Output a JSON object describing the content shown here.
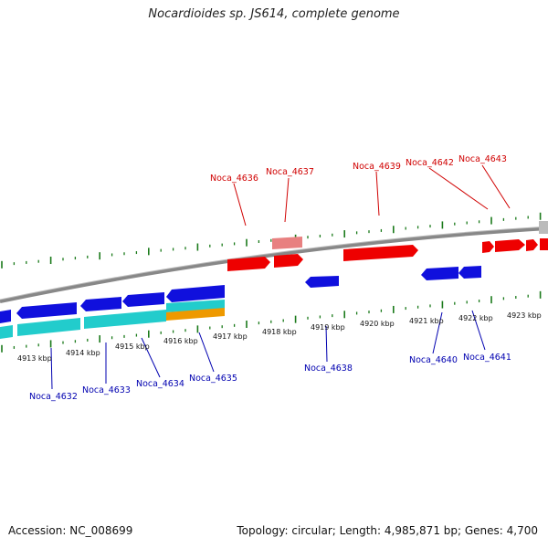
{
  "title": "Nocardioides sp. JS614, complete genome",
  "footer": {
    "accession": "Accession: NC_008699",
    "summary": "Topology: circular; Length: 4,985,871 bp; Genes: 4,700"
  },
  "colors": {
    "forward_gene": "#ee0000",
    "forward_gene_light": "#e88080",
    "reverse_gene": "#1010dd",
    "cds_cyan": "#22cccc",
    "cds_orange": "#ee9900",
    "backbone": "#888888",
    "tick": "#1a7a1a",
    "label_top": "#d00000",
    "label_bottom": "#0000b0",
    "unassigned": "#bbbbbb"
  },
  "scale_labels": [
    "4913 kbp",
    "4914 kbp",
    "4915 kbp",
    "4916 kbp",
    "4917 kbp",
    "4918 kbp",
    "4919 kbp",
    "4920 kbp",
    "4921 kbp",
    "4922 kbp",
    "4923 kbp"
  ],
  "top_genes": [
    "Noca_4636",
    "Noca_4637",
    "Noca_4639",
    "Noca_4642",
    "Noca_4643"
  ],
  "bottom_genes": [
    "Noca_4632",
    "Noca_4633",
    "Noca_4634",
    "Noca_4635",
    "Noca_4638",
    "Noca_4640",
    "Noca_4641"
  ]
}
